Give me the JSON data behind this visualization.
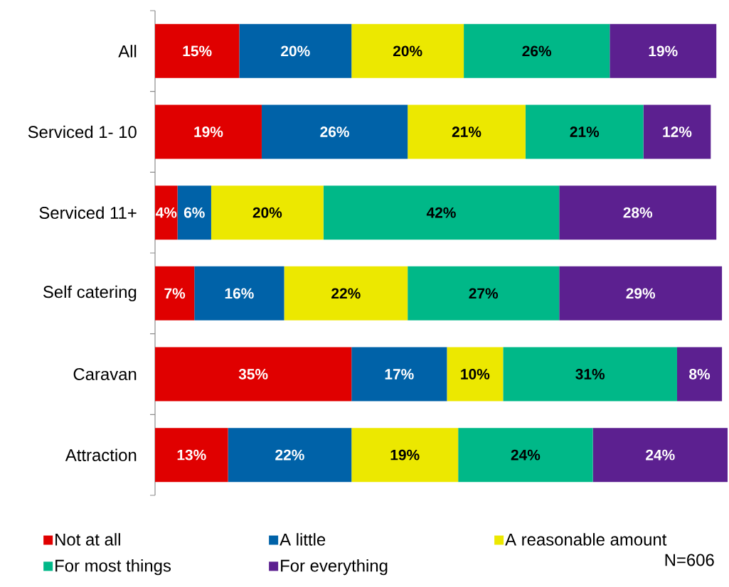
{
  "chart_data": {
    "type": "bar",
    "orientation": "horizontal",
    "stacked": true,
    "categories": [
      "All",
      "Serviced 1- 10",
      "Serviced 11+",
      "Self catering",
      "Caravan",
      "Attraction"
    ],
    "series": [
      {
        "name": "Not at all",
        "color": "#e00000",
        "values": [
          15,
          19,
          4,
          7,
          35,
          13
        ],
        "value_labels": [
          "15%",
          "19%",
          "4%",
          "7%",
          "35%",
          "13%"
        ]
      },
      {
        "name": "A little",
        "color": "#0062a8",
        "values": [
          20,
          26,
          6,
          16,
          17,
          22
        ],
        "value_labels": [
          "20%",
          "26%",
          "6%",
          "16%",
          "17%",
          "22%"
        ]
      },
      {
        "name": "A reasonable amount",
        "color": "#ece800",
        "values": [
          20,
          21,
          20,
          22,
          10,
          19
        ],
        "value_labels": [
          "20%",
          "21%",
          "20%",
          "22%",
          "10%",
          "19%"
        ]
      },
      {
        "name": "For most things",
        "color": "#00b888",
        "values": [
          26,
          21,
          42,
          27,
          31,
          24
        ],
        "value_labels": [
          "26%",
          "21%",
          "42%",
          "27%",
          "31%",
          "24%"
        ]
      },
      {
        "name": "For everything",
        "color": "#5c2090",
        "values": [
          19,
          12,
          28,
          29,
          8,
          24
        ],
        "value_labels": [
          "19%",
          "12%",
          "28%",
          "29%",
          "8%",
          "24%"
        ]
      }
    ],
    "legend": "bottom",
    "annotations": [
      "N=606"
    ]
  }
}
